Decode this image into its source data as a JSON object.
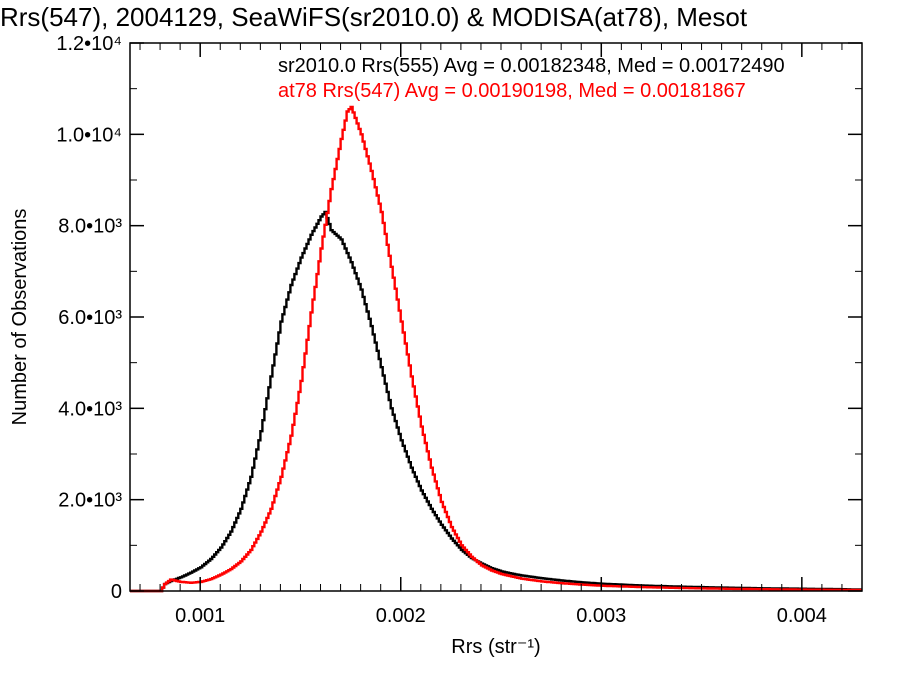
{
  "chart_data": {
    "type": "line",
    "title": "Rrs(547), 2004129, SeaWiFS(sr2010.0) & MODISA(at78), Mesot",
    "xlabel": "Rrs (str⁻¹)",
    "ylabel": "Number of Observations",
    "xlim": [
      0.00065,
      0.0043
    ],
    "ylim": [
      0,
      12000
    ],
    "x_ticks": [
      {
        "value": 0.001,
        "label": "0.001"
      },
      {
        "value": 0.002,
        "label": "0.002"
      },
      {
        "value": 0.003,
        "label": "0.003"
      },
      {
        "value": 0.004,
        "label": "0.004"
      }
    ],
    "y_ticks": [
      {
        "value": 0,
        "label": "0"
      },
      {
        "value": 2000,
        "label": "2.0•10³"
      },
      {
        "value": 4000,
        "label": "4.0•10³"
      },
      {
        "value": 6000,
        "label": "6.0•10³"
      },
      {
        "value": 8000,
        "label": "8.0•10³"
      },
      {
        "value": 10000,
        "label": "1.0•10⁴"
      },
      {
        "value": 12000,
        "label": "1.2•10⁴"
      }
    ],
    "grid": false,
    "annotations": [
      {
        "text": "sr2010.0 Rrs(555) Avg = 0.00182348, Med = 0.00172490",
        "color": "#000000"
      },
      {
        "text": "at78 Rrs(547) Avg = 0.00190198, Med = 0.00181867",
        "color": "#ff0000"
      }
    ],
    "series": [
      {
        "color": "#000000",
        "x": [
          0.00065,
          0.0008,
          0.00082,
          0.00085,
          0.0009,
          0.00095,
          0.001,
          0.00105,
          0.0011,
          0.00115,
          0.0012,
          0.00125,
          0.0013,
          0.00135,
          0.0014,
          0.00145,
          0.0015,
          0.00155,
          0.0016,
          0.00162,
          0.00165,
          0.0017,
          0.00175,
          0.0018,
          0.00185,
          0.0019,
          0.00195,
          0.002,
          0.00205,
          0.0021,
          0.00215,
          0.0022,
          0.00225,
          0.0023,
          0.00235,
          0.0024,
          0.00245,
          0.0025,
          0.00255,
          0.0026,
          0.0027,
          0.0028,
          0.0029,
          0.003,
          0.0032,
          0.0034,
          0.0036,
          0.0038,
          0.004,
          0.0042,
          0.0043
        ],
        "y": [
          0,
          0,
          150,
          220,
          300,
          400,
          520,
          700,
          950,
          1300,
          1800,
          2500,
          3500,
          4700,
          5900,
          6700,
          7300,
          7800,
          8200,
          8300,
          7900,
          7700,
          7200,
          6600,
          5800,
          4900,
          4000,
          3300,
          2700,
          2200,
          1800,
          1450,
          1150,
          900,
          720,
          600,
          500,
          430,
          380,
          340,
          280,
          230,
          190,
          160,
          120,
          95,
          75,
          60,
          50,
          40,
          30
        ]
      },
      {
        "color": "#ff0000",
        "x": [
          0.00065,
          0.0008,
          0.00082,
          0.00085,
          0.0009,
          0.00095,
          0.001,
          0.00105,
          0.0011,
          0.00115,
          0.0012,
          0.00125,
          0.0013,
          0.00135,
          0.0014,
          0.00145,
          0.0015,
          0.00155,
          0.0016,
          0.00165,
          0.0017,
          0.00173,
          0.00175,
          0.0018,
          0.00185,
          0.0019,
          0.00195,
          0.002,
          0.00205,
          0.0021,
          0.00215,
          0.0022,
          0.00225,
          0.0023,
          0.00235,
          0.0024,
          0.00245,
          0.0025,
          0.00255,
          0.0026,
          0.0027,
          0.0028,
          0.0029,
          0.003,
          0.0032,
          0.0034,
          0.0036,
          0.0038,
          0.004,
          0.0042,
          0.0043
        ],
        "y": [
          0,
          0,
          150,
          250,
          200,
          180,
          200,
          260,
          360,
          480,
          650,
          900,
          1300,
          1800,
          2500,
          3400,
          4600,
          6100,
          7500,
          8800,
          9900,
          10500,
          10600,
          10000,
          9200,
          8300,
          7100,
          5900,
          4700,
          3600,
          2700,
          1950,
          1400,
          1000,
          750,
          560,
          450,
          370,
          320,
          270,
          210,
          170,
          140,
          115,
          85,
          65,
          50,
          40,
          30,
          25,
          20
        ]
      }
    ]
  }
}
